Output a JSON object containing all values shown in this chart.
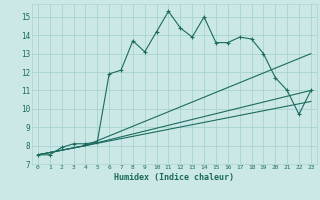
{
  "xlabel": "Humidex (Indice chaleur)",
  "ylabel": "",
  "bg_color": "#cce8e6",
  "grid_color": "#a8d4d0",
  "line_color": "#1a6b5e",
  "xlim": [
    -0.5,
    23.5
  ],
  "ylim": [
    7,
    15.7
  ],
  "xticks": [
    0,
    1,
    2,
    3,
    4,
    5,
    6,
    7,
    8,
    9,
    10,
    11,
    12,
    13,
    14,
    15,
    16,
    17,
    18,
    19,
    20,
    21,
    22,
    23
  ],
  "yticks": [
    7,
    8,
    9,
    10,
    11,
    12,
    13,
    14,
    15
  ],
  "series1_x": [
    0,
    1,
    2,
    3,
    4,
    5,
    6,
    7,
    8,
    9,
    10,
    11,
    12,
    13,
    14,
    15,
    16,
    17,
    18,
    19,
    20,
    21,
    22,
    23
  ],
  "series1_y": [
    7.5,
    7.5,
    7.9,
    8.1,
    8.1,
    8.2,
    11.9,
    12.1,
    13.7,
    13.1,
    14.2,
    15.3,
    14.4,
    13.9,
    15.0,
    13.6,
    13.6,
    13.9,
    13.8,
    13.0,
    11.7,
    11.0,
    9.7,
    11.0
  ],
  "series2_x": [
    0,
    4,
    23
  ],
  "series2_y": [
    7.5,
    8.0,
    13.0
  ],
  "series3_x": [
    0,
    4,
    23
  ],
  "series3_y": [
    7.5,
    8.0,
    11.0
  ],
  "series4_x": [
    0,
    4,
    23
  ],
  "series4_y": [
    7.5,
    8.0,
    10.4
  ]
}
